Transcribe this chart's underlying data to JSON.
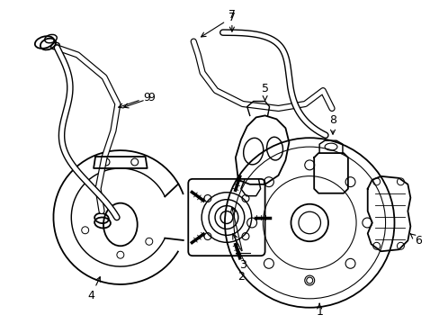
{
  "background_color": "#ffffff",
  "line_color": "#000000",
  "line_width": 1.3,
  "fig_width": 4.89,
  "fig_height": 3.6,
  "dpi": 100
}
